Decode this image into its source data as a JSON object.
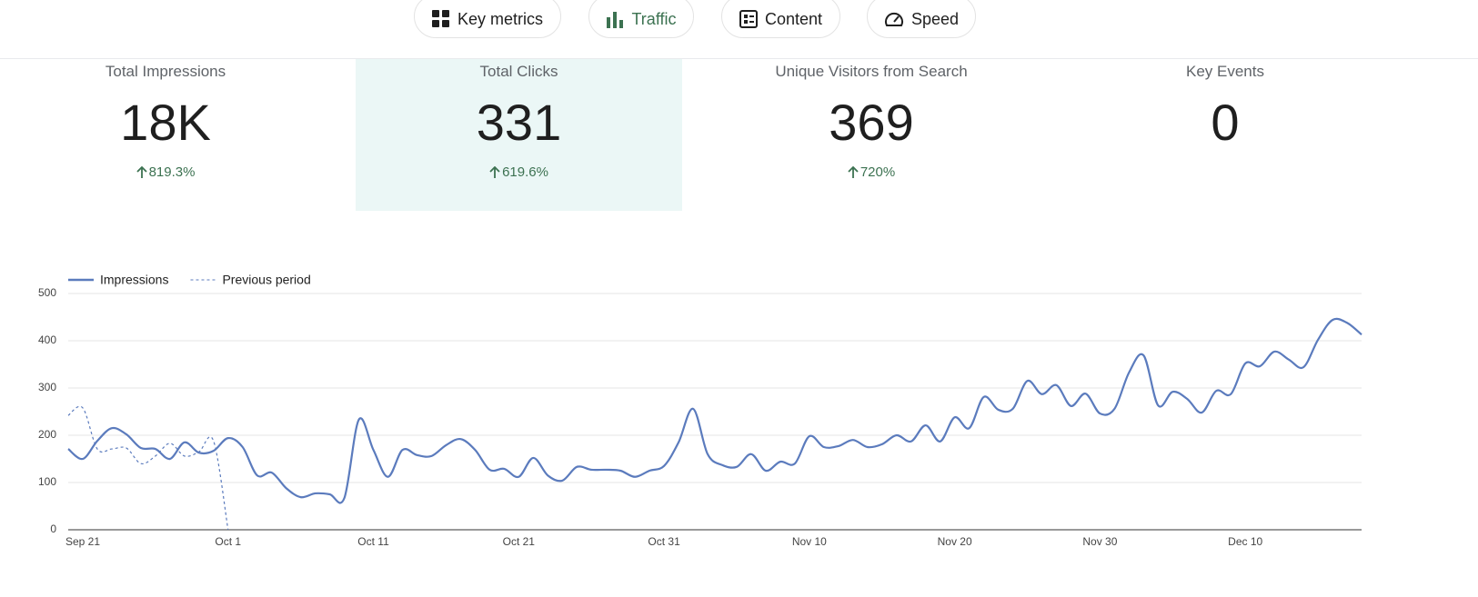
{
  "tabs": [
    "Key metrics",
    "Traffic",
    "Content",
    "Speed"
  ],
  "active_tab": 1,
  "metrics": [
    {
      "label": "Total Impressions",
      "value": "18K",
      "change": "819.3%"
    },
    {
      "label": "Total Clicks",
      "value": "331",
      "change": "619.6%"
    },
    {
      "label": "Unique Visitors from Search",
      "value": "369",
      "change": "720%"
    },
    {
      "label": "Key Events",
      "value": "0"
    }
  ],
  "selected_metric": 1,
  "chart_data": {
    "type": "line",
    "categories": [
      null,
      "Sep 21",
      null,
      null,
      null,
      null,
      null,
      null,
      null,
      null,
      null,
      "Oct 1",
      null,
      null,
      null,
      null,
      null,
      null,
      null,
      null,
      null,
      "Oct 11",
      null,
      null,
      null,
      null,
      null,
      null,
      null,
      null,
      null,
      "Oct 21",
      null,
      null,
      null,
      null,
      null,
      null,
      null,
      null,
      null,
      "Oct 31",
      null,
      null,
      null,
      null,
      null,
      null,
      null,
      null,
      null,
      "Nov 10",
      null,
      null,
      null,
      null,
      null,
      null,
      null,
      null,
      null,
      "Nov 20",
      null,
      null,
      null,
      null,
      null,
      null,
      null,
      null,
      null,
      "Nov 30",
      null,
      null,
      null,
      null,
      null,
      null,
      null,
      null,
      null,
      "Dec 10",
      null,
      null,
      null,
      null,
      null,
      null,
      null,
      null
    ],
    "series": [
      {
        "name": "Impressions",
        "color": "#5b7bbd",
        "dashed": false,
        "values": [
          171,
          150,
          188,
          215,
          202,
          173,
          171,
          150,
          185,
          163,
          167,
          194,
          175,
          115,
          121,
          88,
          69,
          77,
          75,
          67,
          233,
          169,
          112,
          169,
          158,
          156,
          179,
          192,
          169,
          127,
          129,
          112,
          152,
          115,
          104,
          133,
          127,
          127,
          125,
          112,
          125,
          135,
          185,
          256,
          160,
          137,
          133,
          160,
          125,
          144,
          140,
          198,
          175,
          177,
          190,
          175,
          181,
          200,
          187,
          221,
          187,
          238,
          215,
          281,
          254,
          256,
          315,
          287,
          306,
          262,
          288,
          246,
          256,
          333,
          369,
          263,
          292,
          277,
          248,
          294,
          287,
          352,
          346,
          377,
          360,
          344,
          402,
          444,
          438,
          413
        ]
      },
      {
        "name": "Previous period",
        "color": "#5b7bbd",
        "dashed": true,
        "values": [
          242,
          258,
          171,
          171,
          173,
          140,
          156,
          183,
          156,
          165,
          188,
          0,
          null,
          null,
          null,
          null,
          null,
          null,
          null,
          null,
          null,
          null,
          null,
          null,
          null,
          null,
          null,
          null,
          null,
          null,
          null,
          null,
          null,
          null,
          null,
          null,
          null,
          null,
          null,
          null,
          null,
          null,
          null,
          null,
          null,
          null,
          null,
          null,
          null,
          null,
          null,
          null,
          null,
          null,
          null,
          null,
          null,
          null,
          null,
          null,
          null,
          null,
          null,
          null,
          null,
          null,
          null,
          null,
          null,
          null,
          null,
          null,
          null,
          null,
          null,
          null,
          null,
          null,
          null,
          null,
          null,
          null,
          null,
          null,
          null,
          null,
          null,
          null,
          null,
          null
        ]
      }
    ],
    "ylim": [
      0,
      500
    ],
    "yticks": [
      0,
      100,
      200,
      300,
      400,
      500
    ],
    "grid": true,
    "legend": "top-left"
  }
}
